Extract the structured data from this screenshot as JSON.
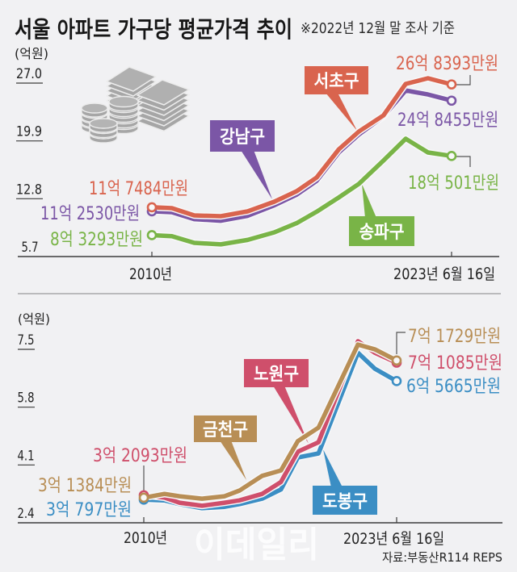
{
  "header": {
    "title": "서울 아파트 가구당 평균가격 추이",
    "note": "※2022년 12월 말 조사 기준"
  },
  "decorations": {
    "icon": "money-stack-icon"
  },
  "footer": {
    "source": "자료:부동산R114 REPS",
    "watermark": "이데일리"
  },
  "chart_data": [
    {
      "type": "line",
      "title": "",
      "xlabel": "",
      "ylabel": "(억원)",
      "ylim": [
        5.7,
        27.0
      ],
      "yticks": [
        5.7,
        12.8,
        19.9,
        27.0
      ],
      "ytick_labels": [
        "5.7",
        "12.8",
        "19.9",
        "27.0"
      ],
      "xlim": [
        2010,
        2023.46
      ],
      "xticks": [
        2010,
        2023.46
      ],
      "xtick_labels": [
        "2010년",
        "2023년 6월 16일"
      ],
      "grid": false,
      "legend": "inline-tags",
      "x": [
        2010,
        2010.9,
        2011.9,
        2013.1,
        2014.3,
        2015.5,
        2016.5,
        2017.4,
        2018.4,
        2019.3,
        2020.4,
        2021.4,
        2022.4,
        2023.46
      ],
      "series": [
        {
          "name": "서초구",
          "color": "#d9644e",
          "values": [
            11.7484,
            11.64,
            10.75,
            10.65,
            11.25,
            12.44,
            13.72,
            15.41,
            18.88,
            21.06,
            23.04,
            26.9,
            27.59,
            26.8393
          ],
          "start_label": "11억 7484만원",
          "end_label": "26억 8393만원"
        },
        {
          "name": "강남구",
          "color": "#7b56a6",
          "values": [
            11.253,
            11.15,
            10.3,
            10.1,
            10.7,
            12.0,
            13.3,
            15.0,
            18.5,
            20.7,
            22.9,
            26.1,
            25.6,
            24.8455
          ],
          "start_label": "11억 2530만원",
          "end_label": "24억 8455만원"
        },
        {
          "name": "송파구",
          "color": "#79b447",
          "values": [
            8.3293,
            8.2,
            7.38,
            7.2,
            7.74,
            8.67,
            9.8,
            11.21,
            12.96,
            14.63,
            17.49,
            20.16,
            18.48,
            18.0501
          ],
          "start_label": "8억 3293만원",
          "end_label": "18억 501만원"
        }
      ]
    },
    {
      "type": "line",
      "title": "",
      "xlabel": "",
      "ylabel": "(억원)",
      "ylim": [
        2.4,
        7.5
      ],
      "yticks": [
        2.4,
        4.1,
        5.8,
        7.5
      ],
      "ytick_labels": [
        "2.4",
        "4.1",
        "5.8",
        "7.5"
      ],
      "xlim": [
        2010,
        2023.46
      ],
      "xticks": [
        2010,
        2023.46
      ],
      "xtick_labels": [
        "2010년",
        "2023년 6월 16일"
      ],
      "grid": false,
      "legend": "inline-tags",
      "x": [
        2010,
        2011.1,
        2011.9,
        2013.1,
        2014.3,
        2015.1,
        2016.3,
        2017.3,
        2018.2,
        2019.3,
        2021.4,
        2022.3,
        2023.46
      ],
      "series": [
        {
          "name": "노원구",
          "color": "#cf4f6b",
          "values": [
            3.2093,
            3.14,
            2.99,
            2.9,
            2.99,
            3.06,
            3.25,
            3.6,
            4.49,
            4.77,
            7.74,
            7.4,
            7.1085
          ],
          "start_label": "3억 2093만원",
          "end_label": "7억 1085만원"
        },
        {
          "name": "금천구",
          "color": "#b88e55",
          "values": [
            3.1384,
            3.25,
            3.18,
            3.11,
            3.18,
            3.35,
            3.78,
            3.94,
            4.8,
            5.2,
            7.64,
            7.5,
            7.1729
          ],
          "start_label": "3억 1384만원",
          "end_label": "7억 1729만원"
        },
        {
          "name": "도봉구",
          "color": "#3b8ec4",
          "values": [
            3.0797,
            3.06,
            2.95,
            2.83,
            2.87,
            2.95,
            3.11,
            3.38,
            4.32,
            4.44,
            7.4,
            6.93,
            6.5665
          ],
          "start_label": "3억 797만원",
          "end_label": "6억 5665만원"
        }
      ]
    }
  ]
}
